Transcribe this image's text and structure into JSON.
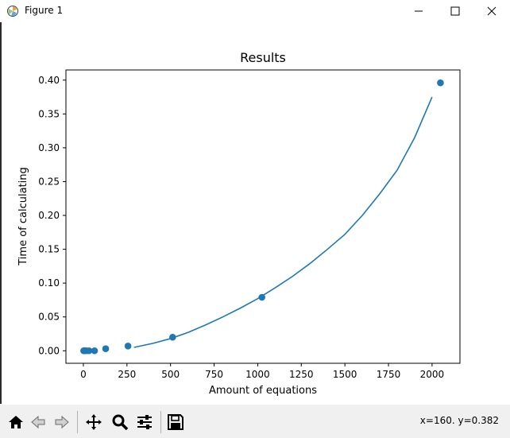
{
  "window": {
    "title": "Figure 1",
    "controls": {
      "minimize": "minimize-icon",
      "maximize": "maximize-icon",
      "close": "close-icon"
    }
  },
  "toolbar": {
    "buttons": [
      "home-icon",
      "back-arrow-icon",
      "forward-arrow-icon",
      "pan-icon",
      "zoom-icon",
      "configure-subplots-icon",
      "save-icon"
    ],
    "coords": "x=160. y=0.382"
  },
  "colors": {
    "series": "#1f77b4",
    "toolbar_bg": "#f0f0f0"
  },
  "chart_data": {
    "type": "scatter",
    "title": "Results",
    "xlabel": "Amount of equations",
    "ylabel": "Time of calculating",
    "xlim": [
      -100,
      2160
    ],
    "ylim": [
      -0.0185,
      0.415
    ],
    "xticks": [
      0,
      250,
      500,
      750,
      1000,
      1250,
      1500,
      1750,
      2000
    ],
    "xtick_labels": [
      "0",
      "250",
      "500",
      "750",
      "1000",
      "1250",
      "1500",
      "1750",
      "2000"
    ],
    "yticks": [
      0.0,
      0.05,
      0.1,
      0.15,
      0.2,
      0.25,
      0.3,
      0.35,
      0.4
    ],
    "ytick_labels": [
      "0.00",
      "0.05",
      "0.10",
      "0.15",
      "0.20",
      "0.25",
      "0.30",
      "0.35",
      "0.40"
    ],
    "grid": false,
    "series": [
      {
        "type": "scatter",
        "x": [
          2,
          4,
          8,
          16,
          32,
          64,
          128,
          256,
          512,
          1024,
          2048
        ],
        "y": [
          0.0,
          0.0,
          0.0,
          0.0,
          0.0,
          0.0,
          0.003,
          0.007,
          0.02,
          0.079,
          0.396
        ]
      },
      {
        "type": "line",
        "x": [
          290,
          400,
          500,
          600,
          700,
          800,
          900,
          1000,
          1100,
          1200,
          1300,
          1400,
          1500,
          1600,
          1700,
          1800,
          1900,
          2000
        ],
        "y": [
          0.005,
          0.011,
          0.018,
          0.027,
          0.038,
          0.05,
          0.063,
          0.077,
          0.093,
          0.11,
          0.129,
          0.15,
          0.172,
          0.2,
          0.232,
          0.267,
          0.315,
          0.375
        ]
      }
    ]
  }
}
